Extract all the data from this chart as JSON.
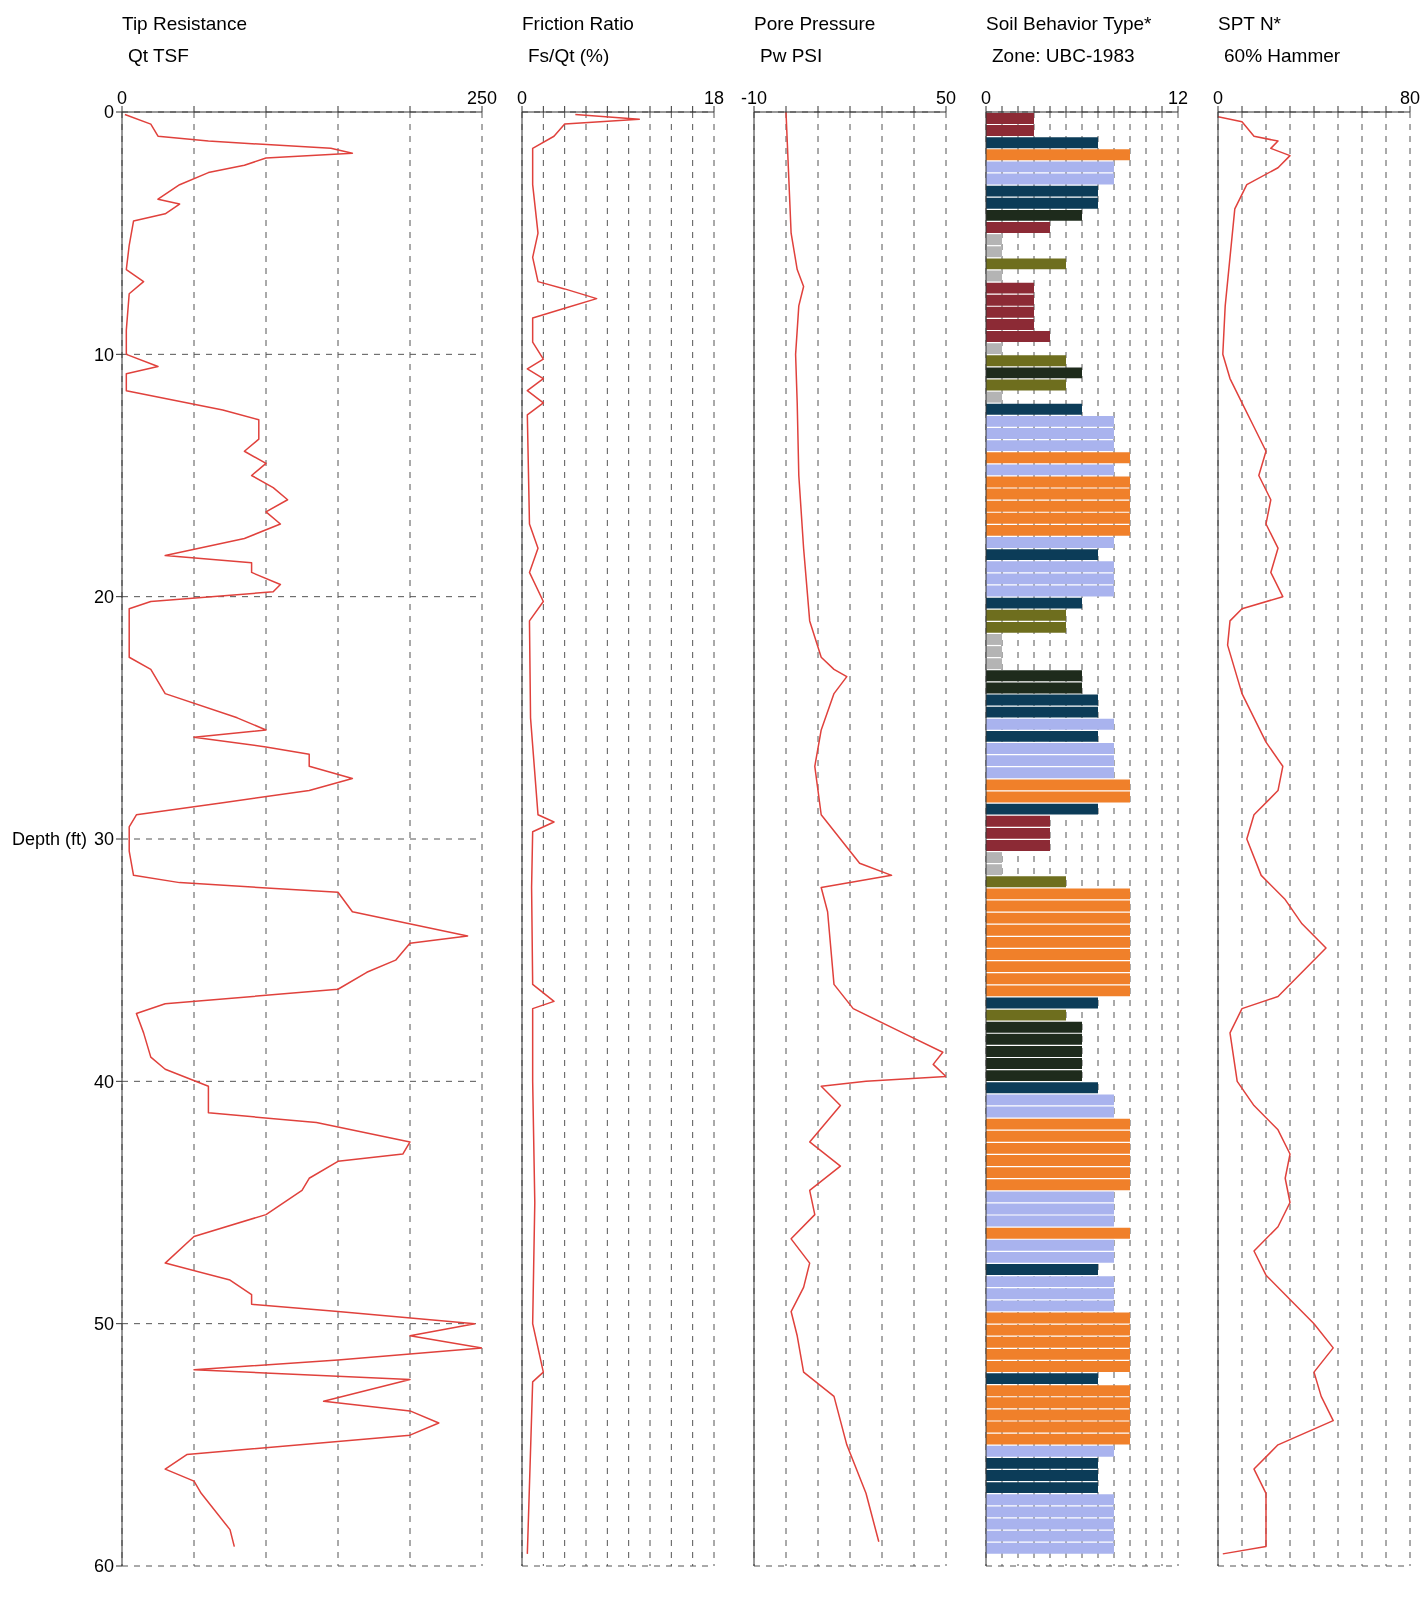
{
  "chart_data": [
    {
      "type": "line",
      "title": "Tip Resistance",
      "subtitle": "Qt TSF",
      "ylabel": "Depth (ft)",
      "orientation": "horizontal",
      "xlim": [
        0,
        250
      ],
      "xticks": [
        0,
        {
          "value": 50,
          "label": null
        },
        {
          "value": 100,
          "label": null
        },
        {
          "value": 150,
          "label": null
        },
        {
          "value": 200,
          "label": null
        },
        250
      ],
      "ylim": [
        60,
        0
      ],
      "yticks": [
        0,
        10,
        20,
        30,
        40,
        50,
        60
      ],
      "grid": true,
      "series": [
        {
          "color": "#e0413c",
          "x": [
            0.1,
            0.5,
            1.0,
            1.2,
            1.5,
            1.7,
            1.9,
            2.2,
            2.5,
            3,
            3.6,
            3.8,
            4.2,
            4.5,
            5.5,
            6.5,
            7,
            7.5,
            9,
            10,
            10.5,
            10.8,
            11.5,
            12.3,
            12.7,
            13.5,
            14,
            14.5,
            15,
            15.5,
            16,
            16.5,
            17,
            17.6,
            18.3,
            18.6,
            19,
            19.5,
            19.8,
            20.2,
            20.5,
            21.5,
            22.5,
            23,
            24,
            25,
            25.5,
            25.8,
            26.2,
            26.5,
            27,
            27.5,
            28,
            28.5,
            29,
            29.5,
            30.5,
            31.5,
            31.8,
            32.2,
            33,
            34,
            34.3,
            35,
            35.5,
            36.2,
            36.8,
            37.2,
            38,
            39,
            39.5,
            40.2,
            41.3,
            41.7,
            42.5,
            43,
            43.3,
            44,
            44.5,
            45.5,
            46.4,
            47.5,
            48.2,
            48.8,
            49.2,
            49.5,
            50,
            50.5,
            51,
            51.5,
            51.9,
            52.3,
            53.2,
            53.6,
            54.1,
            54.6,
            55.4,
            56,
            56.5,
            57,
            58.5,
            59.2
          ],
          "values": [
            2,
            20,
            25,
            60,
            145,
            160,
            100,
            85,
            60,
            40,
            25,
            40,
            30,
            8,
            5,
            3,
            15,
            5,
            3,
            3,
            25,
            3,
            3,
            70,
            95,
            95,
            85,
            100,
            90,
            105,
            115,
            100,
            110,
            85,
            30,
            90,
            90,
            110,
            105,
            20,
            5,
            5,
            5,
            20,
            30,
            80,
            100,
            50,
            100,
            130,
            130,
            160,
            130,
            70,
            10,
            5,
            5,
            8,
            40,
            150,
            160,
            240,
            200,
            190,
            170,
            150,
            30,
            10,
            15,
            20,
            30,
            60,
            60,
            135,
            200,
            195,
            150,
            130,
            125,
            100,
            50,
            30,
            75,
            90,
            90,
            150,
            245,
            200,
            250,
            150,
            50,
            200,
            140,
            200,
            220,
            200,
            45,
            30,
            50,
            55,
            75,
            78
          ]
        }
      ]
    },
    {
      "type": "line",
      "title": "Friction Ratio",
      "subtitle": "Fs/Qt (%)",
      "orientation": "horizontal",
      "xlim": [
        0,
        18
      ],
      "xticks": [
        0,
        {
          "value": 2,
          "label": null
        },
        {
          "value": 4,
          "label": null
        },
        {
          "value": 6,
          "label": null
        },
        {
          "value": 8,
          "label": null
        },
        {
          "value": 10,
          "label": null
        },
        {
          "value": 12,
          "label": null
        },
        {
          "value": 14,
          "label": null
        },
        {
          "value": 16,
          "label": null
        },
        18
      ],
      "ylim": [
        60,
        0
      ],
      "yticks": [
        0,
        10,
        20,
        30,
        40,
        50,
        60
      ],
      "grid": true,
      "tick_labels": "x",
      "series": [
        {
          "color": "#e0413c",
          "x": [
            0.1,
            0.3,
            0.5,
            1,
            1.5,
            3,
            5,
            6,
            7,
            7.3,
            7.7,
            8.1,
            8.5,
            9.5,
            10.2,
            10.6,
            11,
            11.5,
            12,
            12.5,
            17,
            18,
            19,
            20.2,
            21,
            25,
            29,
            29.3,
            29.7,
            32,
            36,
            36.7,
            37,
            40,
            45,
            50,
            52,
            52.4,
            59.5
          ],
          "values": [
            5,
            11,
            4,
            3,
            1,
            1,
            1.5,
            1,
            1.5,
            4,
            7,
            4,
            1,
            1,
            2,
            0.5,
            2,
            0.5,
            2,
            0.5,
            0.7,
            1.5,
            0.7,
            2,
            0.7,
            0.8,
            1.5,
            3,
            1,
            0.9,
            1,
            3,
            1,
            1,
            1.2,
            1,
            2,
            1,
            0.5
          ]
        }
      ]
    },
    {
      "type": "line",
      "title": "Pore Pressure",
      "subtitle": "Pw PSI",
      "orientation": "horizontal",
      "xlim": [
        -10,
        50
      ],
      "xticks": [
        -10,
        {
          "value": 0,
          "label": null
        },
        {
          "value": 10,
          "label": null
        },
        {
          "value": 20,
          "label": null
        },
        {
          "value": 30,
          "label": null
        },
        {
          "value": 40,
          "label": null
        },
        50
      ],
      "ylim": [
        60,
        0
      ],
      "yticks": [
        0,
        10,
        20,
        30,
        40,
        50,
        60
      ],
      "grid": true,
      "tick_labels": "x",
      "series": [
        {
          "color": "#e0413c",
          "x": [
            0,
            5,
            6.5,
            7.2,
            8,
            10,
            12,
            15,
            18,
            21,
            22.5,
            23,
            23.3,
            24,
            25.5,
            27,
            29,
            30,
            31,
            31.5,
            32,
            33,
            36,
            37,
            38,
            38.8,
            39.3,
            39.8,
            40,
            40.2,
            41,
            42.5,
            43.5,
            44.5,
            45.5,
            46.5,
            47.5,
            48.5,
            49.5,
            50.5,
            52,
            53,
            55,
            57,
            59
          ],
          "values": [
            0,
            1.6,
            3.5,
            5.5,
            4,
            3,
            3.5,
            4,
            5.5,
            7.4,
            11,
            15,
            19,
            15,
            11,
            9,
            11,
            17,
            23,
            33,
            11,
            13,
            15,
            21,
            36.5,
            49,
            46,
            50,
            25,
            11,
            17,
            7.4,
            17,
            7.4,
            9,
            1.6,
            7.4,
            5.5,
            1.6,
            3.5,
            5.5,
            15,
            19,
            25,
            29
          ]
        }
      ]
    },
    {
      "type": "bar",
      "title": "Soil Behavior Type*",
      "subtitle": "Zone: UBC-1983",
      "orientation": "horizontal",
      "xlim": [
        0,
        12
      ],
      "xticks": [
        0,
        {
          "value": 1,
          "label": null
        },
        {
          "value": 2,
          "label": null
        },
        {
          "value": 3,
          "label": null
        },
        {
          "value": 4,
          "label": null
        },
        {
          "value": 5,
          "label": null
        },
        {
          "value": 6,
          "label": null
        },
        {
          "value": 7,
          "label": null
        },
        {
          "value": 8,
          "label": null
        },
        {
          "value": 9,
          "label": null
        },
        {
          "value": 10,
          "label": null
        },
        {
          "value": 11,
          "label": null
        },
        12
      ],
      "ylim": [
        60,
        0
      ],
      "yticks": [
        0,
        10,
        20,
        30,
        40,
        50,
        60
      ],
      "grid": true,
      "tick_labels": "x",
      "x": [
        0.25,
        0.75,
        1.25,
        1.75,
        2.25,
        2.75,
        3.25,
        3.75,
        4.25,
        4.75,
        5.25,
        5.75,
        6.25,
        6.75,
        7.25,
        7.75,
        8.25,
        8.75,
        9.25,
        9.75,
        10.25,
        10.75,
        11.25,
        11.75,
        12.25,
        12.75,
        13.25,
        13.75,
        14.25,
        14.75,
        15.25,
        15.75,
        16.25,
        16.75,
        17.25,
        17.75,
        18.25,
        18.75,
        19.25,
        19.75,
        20.25,
        20.75,
        21.25,
        21.75,
        22.25,
        22.75,
        23.25,
        23.75,
        24.25,
        24.75,
        25.25,
        25.75,
        26.25,
        26.75,
        27.25,
        27.75,
        28.25,
        28.75,
        29.25,
        29.75,
        30.25,
        30.75,
        31.25,
        31.75,
        32.25,
        32.75,
        33.25,
        33.75,
        34.25,
        34.75,
        35.25,
        35.75,
        36.25,
        36.75,
        37.25,
        37.75,
        38.25,
        38.75,
        39.25,
        39.75,
        40.25,
        40.75,
        41.25,
        41.75,
        42.25,
        42.75,
        43.25,
        43.75,
        44.25,
        44.75,
        45.25,
        45.75,
        46.25,
        46.75,
        47.25,
        47.75,
        48.25,
        48.75,
        49.25,
        49.75,
        50.25,
        50.75,
        51.25,
        51.75,
        52.25,
        52.75,
        53.25,
        53.75,
        54.25,
        54.75,
        55.25,
        55.75,
        56.25,
        56.75,
        57.25,
        57.75,
        58.25,
        58.75,
        59.25
      ],
      "values": [
        3,
        3,
        7,
        9,
        8,
        8,
        7,
        7,
        6,
        4,
        1,
        1,
        5,
        1,
        3,
        3,
        3,
        3,
        4,
        1,
        5,
        6,
        5,
        1,
        6,
        8,
        8,
        8,
        9,
        8,
        9,
        9,
        9,
        9,
        9,
        8,
        7,
        8,
        8,
        8,
        6,
        5,
        5,
        1,
        1,
        1,
        6,
        6,
        7,
        7,
        8,
        7,
        8,
        8,
        8,
        9,
        9,
        7,
        4,
        4,
        4,
        1,
        1,
        5,
        9,
        9,
        9,
        9,
        9,
        9,
        9,
        9,
        9,
        7,
        5,
        6,
        6,
        6,
        6,
        6,
        7,
        8,
        8,
        9,
        9,
        9,
        9,
        9,
        9,
        8,
        8,
        8,
        9,
        8,
        8,
        7,
        8,
        8,
        8,
        9,
        9,
        9,
        9,
        9,
        7,
        9,
        9,
        9,
        9,
        9,
        8,
        7,
        7,
        7,
        8,
        8,
        8,
        8,
        8
      ],
      "colors": [
        "#8c2a35",
        "#8c2a35",
        "#0c3c58",
        "#f0802a",
        "#a9b3ee",
        "#a9b3ee",
        "#0c3c58",
        "#0c3c58",
        "#1e2b1c",
        "#8c2a35",
        "#b4b4b4",
        "#b4b4b4",
        "#6e6e1e",
        "#b4b4b4",
        "#8c2a35",
        "#8c2a35",
        "#8c2a35",
        "#8c2a35",
        "#8c2a35",
        "#b4b4b4",
        "#6e6e1e",
        "#1e2b1c",
        "#6e6e1e",
        "#b4b4b4",
        "#0c3c58",
        "#a9b3ee",
        "#a9b3ee",
        "#a9b3ee",
        "#f0802a",
        "#a9b3ee",
        "#f0802a",
        "#f0802a",
        "#f0802a",
        "#f0802a",
        "#f0802a",
        "#a9b3ee",
        "#0c3c58",
        "#a9b3ee",
        "#a9b3ee",
        "#a9b3ee",
        "#0c3c58",
        "#6e6e1e",
        "#6e6e1e",
        "#b4b4b4",
        "#b4b4b4",
        "#b4b4b4",
        "#1e2b1c",
        "#1e2b1c",
        "#0c3c58",
        "#0c3c58",
        "#a9b3ee",
        "#0c3c58",
        "#a9b3ee",
        "#a9b3ee",
        "#a9b3ee",
        "#f0802a",
        "#f0802a",
        "#0c3c58",
        "#8c2a35",
        "#8c2a35",
        "#8c2a35",
        "#b4b4b4",
        "#b4b4b4",
        "#6e6e1e",
        "#f0802a",
        "#f0802a",
        "#f0802a",
        "#f0802a",
        "#f0802a",
        "#f0802a",
        "#f0802a",
        "#f0802a",
        "#f0802a",
        "#0c3c58",
        "#6e6e1e",
        "#1e2b1c",
        "#1e2b1c",
        "#1e2b1c",
        "#1e2b1c",
        "#1e2b1c",
        "#0c3c58",
        "#a9b3ee",
        "#a9b3ee",
        "#f0802a",
        "#f0802a",
        "#f0802a",
        "#f0802a",
        "#f0802a",
        "#f0802a",
        "#a9b3ee",
        "#a9b3ee",
        "#a9b3ee",
        "#f0802a",
        "#a9b3ee",
        "#a9b3ee",
        "#0c3c58",
        "#a9b3ee",
        "#a9b3ee",
        "#a9b3ee",
        "#f0802a",
        "#f0802a",
        "#f0802a",
        "#f0802a",
        "#f0802a",
        "#0c3c58",
        "#f0802a",
        "#f0802a",
        "#f0802a",
        "#f0802a",
        "#f0802a",
        "#a9b3ee",
        "#0c3c58",
        "#0c3c58",
        "#0c3c58",
        "#a9b3ee",
        "#a9b3ee",
        "#a9b3ee",
        "#a9b3ee",
        "#a9b3ee"
      ]
    },
    {
      "type": "line",
      "title": "SPT N*",
      "subtitle": "60% Hammer",
      "orientation": "horizontal",
      "xlim": [
        0,
        80
      ],
      "xticks": [
        0,
        {
          "value": 10,
          "label": null
        },
        {
          "value": 20,
          "label": null
        },
        {
          "value": 30,
          "label": null
        },
        {
          "value": 40,
          "label": null
        },
        {
          "value": 50,
          "label": null
        },
        {
          "value": 60,
          "label": null
        },
        {
          "value": 70,
          "label": null
        },
        80
      ],
      "ylim": [
        60,
        0
      ],
      "yticks": [
        0,
        10,
        20,
        30,
        40,
        50,
        60
      ],
      "grid": true,
      "tick_labels": "x",
      "series": [
        {
          "color": "#e0413c",
          "x": [
            0.2,
            0.4,
            1,
            1.2,
            1.5,
            1.8,
            2.3,
            3,
            4,
            6,
            8,
            10,
            11,
            12,
            13,
            14,
            15,
            16,
            17,
            18,
            19,
            20,
            20.5,
            21,
            22,
            24,
            25,
            26,
            27,
            28,
            29,
            30,
            31.5,
            32.5,
            33.5,
            34.5,
            35.5,
            36.5,
            37,
            38,
            40,
            41,
            42,
            43,
            44,
            45,
            46,
            47,
            48,
            49,
            50,
            51,
            52,
            53,
            54,
            55,
            56,
            57,
            58,
            59.2,
            59.5
          ],
          "values": [
            0,
            10,
            15,
            25,
            22,
            30,
            25,
            12,
            7,
            5,
            3,
            2,
            5,
            10,
            15,
            20,
            17,
            22,
            20,
            25,
            22,
            27,
            10,
            5,
            4,
            10,
            15,
            20,
            27,
            25,
            15,
            12,
            18,
            28,
            35,
            45,
            35,
            25,
            10,
            5,
            8,
            15,
            25,
            30,
            28,
            30,
            25,
            15,
            20,
            30,
            40,
            48,
            40,
            43,
            48,
            25,
            15,
            20,
            20,
            20,
            2
          ]
        }
      ]
    }
  ]
}
